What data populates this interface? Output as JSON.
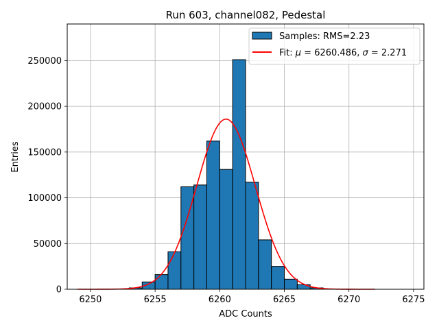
{
  "chart_data": {
    "type": "bar",
    "title": "Run 603, channel082, Pedestal",
    "xlabel": "ADC Counts",
    "ylabel": "Entries",
    "xlim": [
      6248.2,
      6275.8
    ],
    "ylim": [
      0,
      290000
    ],
    "grid": true,
    "legend_position": "top-right",
    "x_ticks": [
      6250,
      6255,
      6260,
      6265,
      6270,
      6275
    ],
    "y_ticks": [
      0,
      50000,
      100000,
      150000,
      200000,
      250000
    ],
    "x_tick_labels": [
      "6250",
      "6255",
      "6260",
      "6265",
      "6270",
      "6275"
    ],
    "y_tick_labels": [
      "0",
      "50000",
      "100000",
      "150000",
      "200000",
      "250000"
    ],
    "histogram": {
      "name": "Samples: RMS=2.23",
      "bin_width": 1,
      "bins": [
        {
          "x0": 6253,
          "value": 1500
        },
        {
          "x0": 6254,
          "value": 8000
        },
        {
          "x0": 6255,
          "value": 16000
        },
        {
          "x0": 6256,
          "value": 41000
        },
        {
          "x0": 6257,
          "value": 112000
        },
        {
          "x0": 6258,
          "value": 114000
        },
        {
          "x0": 6259,
          "value": 162000
        },
        {
          "x0": 6260,
          "value": 131000
        },
        {
          "x0": 6261,
          "value": 251000
        },
        {
          "x0": 6262,
          "value": 117000
        },
        {
          "x0": 6263,
          "value": 54000
        },
        {
          "x0": 6264,
          "value": 25000
        },
        {
          "x0": 6265,
          "value": 11000
        },
        {
          "x0": 6266,
          "value": 5000
        },
        {
          "x0": 6267,
          "value": 1500
        }
      ],
      "color": "#1f77b4",
      "edge_color": "#000000"
    },
    "fit": {
      "name": "Fit: μ = 6260.486, σ = 2.271",
      "name_prefix": "Fit: ",
      "mu_symbol": "μ",
      "mu_text": " = 6260.486, ",
      "sigma_symbol": "σ",
      "sigma_text": " = 2.271",
      "mu": 6260.486,
      "sigma": 2.271,
      "amplitude": 186000,
      "x_range": [
        6249,
        6272
      ],
      "color": "#ff0000"
    }
  }
}
